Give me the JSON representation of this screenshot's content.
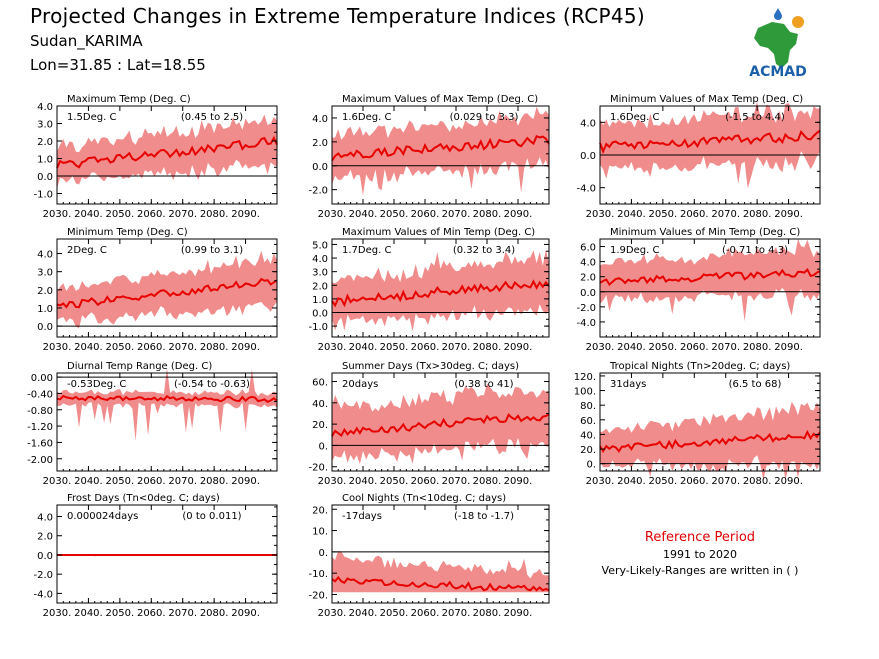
{
  "header": {
    "title": "Projected Changes in Extreme Temperature Indices (RCP45)",
    "subtitle": "Sudan_KARIMA",
    "coords": "Lon=31.85 : Lat=18.55"
  },
  "logo": {
    "text": "ACMAD",
    "icon": "africa-map-logo-icon",
    "colors": {
      "africa": "#2e9a3a",
      "sun": "#f0a020",
      "drop": "#2a6fc0",
      "text": "#1a5fa8"
    }
  },
  "reference": {
    "title": "Reference Period",
    "years": "1991 to 2020",
    "note": "Very-Likely-Ranges are written in ( )"
  },
  "colors": {
    "band": "#f08c8c",
    "line": "#e60000",
    "zero": "#000000"
  },
  "chart_data": [
    {
      "type": "area",
      "title": "Maximum Temp (Deg. C)",
      "value_label": "1.5Deg. C",
      "range_label": "(0.45 to 2.5)",
      "ylim": [
        -1.6,
        4.0
      ],
      "yticks": [
        "4.0",
        "3.0",
        "2.0",
        "1.0",
        "0.0",
        "-1.0"
      ],
      "ytick_values": [
        4,
        3,
        2,
        1,
        0,
        -1
      ],
      "x_start": 2030,
      "x_end": 2100,
      "xticks": [
        "2030.",
        "2040.",
        "2050.",
        "2060.",
        "2070.",
        "2080.",
        "2090."
      ],
      "xtick_values": [
        2030,
        2040,
        2050,
        2060,
        2070,
        2080,
        2090
      ],
      "start_mean": 0.6,
      "end_mean": 2.0,
      "band_start": 0.75,
      "band_end": 1.0,
      "wiggle": 0.25,
      "spike": 0.6
    },
    {
      "type": "area",
      "title": "Maximum Values of Max Temp (Deg. C)",
      "value_label": "1.6Deg. C",
      "range_label": "(0.029 to 3.3)",
      "ylim": [
        -3.2,
        5.0
      ],
      "yticks": [
        "4.0",
        "2.0",
        "0.0",
        "-2.0"
      ],
      "ytick_values": [
        4,
        2,
        0,
        -2
      ],
      "x_start": 2030,
      "x_end": 2100,
      "xticks": [
        "2030.",
        "2040.",
        "2050.",
        "2060.",
        "2070.",
        "2080.",
        "2090."
      ],
      "xtick_values": [
        2030,
        2040,
        2050,
        2060,
        2070,
        2080,
        2090
      ],
      "start_mean": 0.8,
      "end_mean": 2.2,
      "band_start": 1.4,
      "band_end": 1.6,
      "wiggle": 0.4,
      "spike": 1.6
    },
    {
      "type": "area",
      "title": "Minimum Values of Max Temp (Deg. C)",
      "value_label": "1.6Deg. C",
      "range_label": "(-1.5 to 4.4)",
      "ylim": [
        -6.0,
        6.0
      ],
      "yticks": [
        "4.0",
        "0.0",
        "-4.0"
      ],
      "ytick_values": [
        4,
        0,
        -4
      ],
      "x_start": 2030,
      "x_end": 2100,
      "xticks": [
        "2030.",
        "2040.",
        "2050.",
        "2060.",
        "2070.",
        "2080.",
        "2090."
      ],
      "xtick_values": [
        2030,
        2040,
        2050,
        2060,
        2070,
        2080,
        2090
      ],
      "start_mean": 1.0,
      "end_mean": 2.4,
      "band_start": 2.0,
      "band_end": 2.4,
      "wiggle": 0.6,
      "spike": 2.6
    },
    {
      "type": "area",
      "title": "Minimum Temp (Deg. C)",
      "value_label": "2Deg. C",
      "range_label": "(0.99 to 3.1)",
      "ylim": [
        -0.6,
        4.8
      ],
      "yticks": [
        "4.0",
        "3.0",
        "2.0",
        "1.0",
        "0.0"
      ],
      "ytick_values": [
        4,
        3,
        2,
        1,
        0
      ],
      "x_start": 2030,
      "x_end": 2100,
      "xticks": [
        "2030.",
        "2040.",
        "2050.",
        "2060.",
        "2070.",
        "2080.",
        "2090."
      ],
      "xtick_values": [
        2030,
        2040,
        2050,
        2060,
        2070,
        2080,
        2090
      ],
      "start_mean": 1.1,
      "end_mean": 2.5,
      "band_start": 0.7,
      "band_end": 1.0,
      "wiggle": 0.2,
      "spike": 0.3
    },
    {
      "type": "area",
      "title": "Maximum Values of Min Temp (Deg. C)",
      "value_label": "1.7Deg. C",
      "range_label": "(0.32 to 3.4)",
      "ylim": [
        -1.8,
        5.4
      ],
      "yticks": [
        "5.0",
        "4.0",
        "3.0",
        "2.0",
        "1.0",
        "0.0",
        "-1.0"
      ],
      "ytick_values": [
        5,
        4,
        3,
        2,
        1,
        0,
        -1
      ],
      "x_start": 2030,
      "x_end": 2100,
      "xticks": [
        "2030.",
        "2040.",
        "2050.",
        "2060.",
        "2070.",
        "2080.",
        "2090."
      ],
      "xtick_values": [
        2030,
        2040,
        2050,
        2060,
        2070,
        2080,
        2090
      ],
      "start_mean": 0.8,
      "end_mean": 2.2,
      "band_start": 1.2,
      "band_end": 1.5,
      "wiggle": 0.35,
      "spike": 1.0
    },
    {
      "type": "area",
      "title": "Minimum Values of Min Temp (Deg. C)",
      "value_label": "1.9Deg. C",
      "range_label": "(-0.71 to 4.3)",
      "ylim": [
        -6.0,
        7.0
      ],
      "yticks": [
        "6.0",
        "4.0",
        "2.0",
        "0.0",
        "-2.0",
        "-4.0"
      ],
      "ytick_values": [
        6,
        4,
        2,
        0,
        -2,
        -4
      ],
      "x_start": 2030,
      "x_end": 2100,
      "xticks": [
        "2030.",
        "2040.",
        "2050.",
        "2060.",
        "2070.",
        "2080.",
        "2090."
      ],
      "xtick_values": [
        2030,
        2040,
        2050,
        2060,
        2070,
        2080,
        2090
      ],
      "start_mean": 1.3,
      "end_mean": 2.6,
      "band_start": 1.8,
      "band_end": 2.2,
      "wiggle": 0.5,
      "spike": 2.6
    },
    {
      "type": "area",
      "title": "Diurnal Temp Range (Deg. C)",
      "value_label": "-0.53Deg. C",
      "range_label": "(-0.54 to -0.63)",
      "ylim": [
        -2.3,
        0.1
      ],
      "yticks": [
        "0.00",
        "-0.40",
        "-0.80",
        "-1.20",
        "-1.60",
        "-2.00"
      ],
      "ytick_values": [
        0,
        -0.4,
        -0.8,
        -1.2,
        -1.6,
        -2.0
      ],
      "x_start": 2030,
      "x_end": 2100,
      "xticks": [
        "2030.",
        "2040.",
        "2050.",
        "2060.",
        "2070.",
        "2080.",
        "2090."
      ],
      "xtick_values": [
        2030,
        2040,
        2050,
        2060,
        2070,
        2080,
        2090
      ],
      "start_mean": -0.5,
      "end_mean": -0.55,
      "band_start": 0.12,
      "band_end": 0.12,
      "wiggle": 0.06,
      "spike": 0.9
    },
    {
      "type": "area",
      "title": "Summer Days (Tx>30deg. C; days)",
      "value_label": "20days",
      "range_label": "(0.38 to 41)",
      "ylim": [
        -24,
        68
      ],
      "yticks": [
        "60.",
        "40.",
        "20.",
        "0.",
        "-20."
      ],
      "ytick_values": [
        60,
        40,
        20,
        0,
        -20
      ],
      "x_start": 2030,
      "x_end": 2100,
      "xticks": [
        "2030.",
        "2040.",
        "2050.",
        "2060.",
        "2070.",
        "2080.",
        "2090."
      ],
      "xtick_values": [
        2030,
        2040,
        2050,
        2060,
        2070,
        2080,
        2090
      ],
      "start_mean": 12,
      "end_mean": 28,
      "band_start": 18,
      "band_end": 20,
      "wiggle": 4,
      "spike": 10
    },
    {
      "type": "area",
      "title": "Tropical Nights (Tn>20deg. C; days)",
      "value_label": "31days",
      "range_label": "(6.5 to 68)",
      "ylim": [
        -10,
        124
      ],
      "yticks": [
        "120.",
        "100.",
        "80.",
        "60.",
        "40.",
        "20.",
        "0."
      ],
      "ytick_values": [
        120,
        100,
        80,
        60,
        40,
        20,
        0
      ],
      "x_start": 2030,
      "x_end": 2100,
      "xticks": [
        "2030.",
        "2040.",
        "2050.",
        "2060.",
        "2070.",
        "2080.",
        "2090."
      ],
      "xtick_values": [
        2030,
        2040,
        2050,
        2060,
        2070,
        2080,
        2090
      ],
      "start_mean": 20,
      "end_mean": 40,
      "band_start": 18,
      "band_end": 30,
      "wiggle": 5,
      "spike": 20
    },
    {
      "type": "area",
      "title": "Frost Days (Tn<0deg. C; days)",
      "value_label": "0.000024days",
      "range_label": "(0 to 0.011)",
      "ylim": [
        -5.0,
        5.2
      ],
      "yticks": [
        "4.0",
        "2.0",
        "0.0",
        "-2.0",
        "-4.0"
      ],
      "ytick_values": [
        4,
        2,
        0,
        -2,
        -4
      ],
      "x_start": 2030,
      "x_end": 2100,
      "xticks": [
        "2030.",
        "2040.",
        "2050.",
        "2060.",
        "2070.",
        "2080.",
        "2090."
      ],
      "xtick_values": [
        2030,
        2040,
        2050,
        2060,
        2070,
        2080,
        2090
      ],
      "start_mean": 0.0,
      "end_mean": 0.0,
      "band_start": 0.06,
      "band_end": 0.02,
      "wiggle": 0.0,
      "spike": 0.1
    },
    {
      "type": "area",
      "title": "Cool Nights (Tn<10deg. C; days)",
      "value_label": "-17days",
      "range_label": "(-18 to -1.7)",
      "ylim": [
        -24,
        22
      ],
      "yticks": [
        "20.",
        "10.",
        "0.",
        "-10.",
        "-20."
      ],
      "ytick_values": [
        20,
        10,
        0,
        -10,
        -20
      ],
      "x_start": 2030,
      "x_end": 2100,
      "xticks": [
        "2030.",
        "2040.",
        "2050.",
        "2060.",
        "2070.",
        "2080.",
        "2090."
      ],
      "xtick_values": [
        2030,
        2040,
        2050,
        2060,
        2070,
        2080,
        2090
      ],
      "start_mean": -13,
      "end_mean": -18,
      "band_start": 8,
      "band_end": 6,
      "wiggle": 1.5,
      "spike": 5,
      "floor": -18
    }
  ]
}
